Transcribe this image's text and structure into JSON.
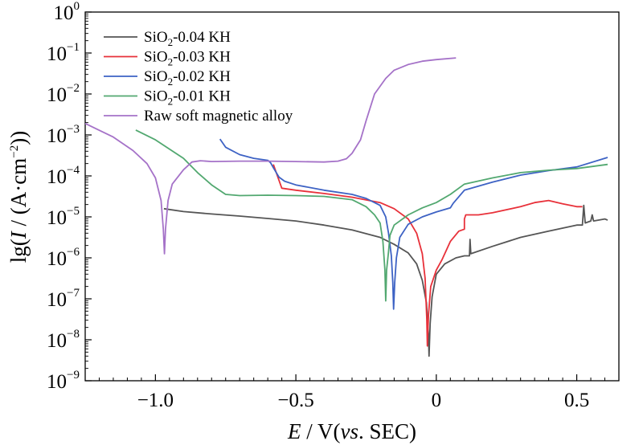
{
  "chart_data": {
    "type": "line",
    "title": "",
    "x_axis": {
      "label_italic": "E",
      "label_rest": " / V(",
      "label_italic2": "vs",
      "label_rest2": ". SEC)",
      "range": [
        -1.25,
        0.65
      ],
      "ticks": [
        -1.0,
        -0.5,
        0,
        0.5
      ],
      "tick_labels": [
        "−1.0",
        "−0.5",
        "0",
        "0.5"
      ]
    },
    "y_axis": {
      "label_pre": "lg(",
      "label_italic": "I",
      "label_mid": " / (A·cm",
      "label_sup": "−2",
      "label_post": "))",
      "scale": "log",
      "range_exponent": [
        -9,
        0
      ],
      "tick_exponents": [
        -9,
        -8,
        -7,
        -6,
        -5,
        -4,
        -3,
        -2,
        -1,
        0
      ],
      "tick_base": "10"
    },
    "legend": {
      "position": "top-left",
      "entries": [
        {
          "pre": "SiO",
          "sub": "2",
          "post": "-0.04 KH",
          "color": "#555555"
        },
        {
          "pre": "SiO",
          "sub": "2",
          "post": "-0.03 KH",
          "color": "#e8313a"
        },
        {
          "pre": "SiO",
          "sub": "2",
          "post": "-0.02 KH",
          "color": "#3d62c4"
        },
        {
          "pre": "SiO",
          "sub": "2",
          "post": "-0.01 KH",
          "color": "#52a870"
        },
        {
          "pre": "Raw soft magnetic alloy",
          "sub": "",
          "post": "",
          "color": "#a572c8"
        }
      ]
    },
    "series": [
      {
        "name": "SiO2-0.04 KH",
        "color": "#555555",
        "points": [
          [
            -0.97,
            -4.8
          ],
          [
            -0.9,
            -4.87
          ],
          [
            -0.8,
            -4.93
          ],
          [
            -0.7,
            -4.98
          ],
          [
            -0.6,
            -5.04
          ],
          [
            -0.5,
            -5.1
          ],
          [
            -0.4,
            -5.2
          ],
          [
            -0.3,
            -5.32
          ],
          [
            -0.2,
            -5.5
          ],
          [
            -0.15,
            -5.67
          ],
          [
            -0.1,
            -5.88
          ],
          [
            -0.07,
            -6.15
          ],
          [
            -0.05,
            -6.55
          ],
          [
            -0.035,
            -7.1
          ],
          [
            -0.028,
            -7.9
          ],
          [
            -0.026,
            -8.4
          ],
          [
            -0.022,
            -7.6
          ],
          [
            -0.015,
            -6.95
          ],
          [
            0,
            -6.4
          ],
          [
            0.03,
            -6.15
          ],
          [
            0.07,
            -6.0
          ],
          [
            0.1,
            -5.95
          ],
          [
            0.118,
            -5.95
          ],
          [
            0.12,
            -5.55
          ],
          [
            0.123,
            -5.9
          ],
          [
            0.2,
            -5.72
          ],
          [
            0.3,
            -5.5
          ],
          [
            0.4,
            -5.35
          ],
          [
            0.5,
            -5.2
          ],
          [
            0.52,
            -5.2
          ],
          [
            0.525,
            -4.72
          ],
          [
            0.53,
            -5.15
          ],
          [
            0.55,
            -5.1
          ],
          [
            0.555,
            -4.95
          ],
          [
            0.56,
            -5.1
          ],
          [
            0.6,
            -5.05
          ],
          [
            0.61,
            -5.08
          ]
        ]
      },
      {
        "name": "SiO2-0.03 KH",
        "color": "#e8313a",
        "points": [
          [
            -0.58,
            -3.72
          ],
          [
            -0.55,
            -4.3
          ],
          [
            -0.5,
            -4.35
          ],
          [
            -0.4,
            -4.43
          ],
          [
            -0.3,
            -4.52
          ],
          [
            -0.2,
            -4.65
          ],
          [
            -0.15,
            -4.8
          ],
          [
            -0.1,
            -5.05
          ],
          [
            -0.07,
            -5.4
          ],
          [
            -0.05,
            -5.9
          ],
          [
            -0.04,
            -6.5
          ],
          [
            -0.034,
            -7.5
          ],
          [
            -0.032,
            -8.15
          ],
          [
            -0.028,
            -7.4
          ],
          [
            -0.02,
            -6.7
          ],
          [
            0,
            -6.3
          ],
          [
            0.02,
            -6.05
          ],
          [
            0.05,
            -5.6
          ],
          [
            0.08,
            -5.35
          ],
          [
            0.1,
            -5.3
          ],
          [
            0.1,
            -5.05
          ],
          [
            0.105,
            -4.95
          ],
          [
            0.15,
            -4.95
          ],
          [
            0.2,
            -4.9
          ],
          [
            0.3,
            -4.75
          ],
          [
            0.35,
            -4.65
          ],
          [
            0.4,
            -4.6
          ],
          [
            0.45,
            -4.68
          ],
          [
            0.5,
            -4.75
          ],
          [
            0.52,
            -4.75
          ]
        ]
      },
      {
        "name": "SiO2-0.02 KH",
        "color": "#3d62c4",
        "points": [
          [
            -0.77,
            -3.1
          ],
          [
            -0.75,
            -3.3
          ],
          [
            -0.7,
            -3.48
          ],
          [
            -0.65,
            -3.57
          ],
          [
            -0.6,
            -3.62
          ],
          [
            -0.59,
            -3.68
          ],
          [
            -0.58,
            -3.8
          ],
          [
            -0.56,
            -4.03
          ],
          [
            -0.54,
            -4.13
          ],
          [
            -0.5,
            -4.22
          ],
          [
            -0.4,
            -4.35
          ],
          [
            -0.3,
            -4.45
          ],
          [
            -0.25,
            -4.55
          ],
          [
            -0.2,
            -4.72
          ],
          [
            -0.18,
            -5.0
          ],
          [
            -0.17,
            -5.4
          ],
          [
            -0.16,
            -5.95
          ],
          [
            -0.155,
            -6.6
          ],
          [
            -0.152,
            -7.25
          ],
          [
            -0.148,
            -6.6
          ],
          [
            -0.142,
            -6.0
          ],
          [
            -0.13,
            -5.5
          ],
          [
            -0.1,
            -5.18
          ],
          [
            -0.05,
            -5.0
          ],
          [
            0,
            -4.88
          ],
          [
            0.05,
            -4.78
          ],
          [
            0.06,
            -4.67
          ],
          [
            0.1,
            -4.35
          ],
          [
            0.2,
            -4.15
          ],
          [
            0.3,
            -3.98
          ],
          [
            0.4,
            -3.87
          ],
          [
            0.5,
            -3.78
          ],
          [
            0.61,
            -3.55
          ]
        ]
      },
      {
        "name": "SiO2-0.01 KH",
        "color": "#52a870",
        "points": [
          [
            -1.07,
            -2.88
          ],
          [
            -1.0,
            -3.12
          ],
          [
            -0.9,
            -3.57
          ],
          [
            -0.85,
            -3.92
          ],
          [
            -0.8,
            -4.22
          ],
          [
            -0.75,
            -4.45
          ],
          [
            -0.7,
            -4.48
          ],
          [
            -0.6,
            -4.47
          ],
          [
            -0.5,
            -4.48
          ],
          [
            -0.4,
            -4.5
          ],
          [
            -0.3,
            -4.58
          ],
          [
            -0.25,
            -4.75
          ],
          [
            -0.22,
            -4.95
          ],
          [
            -0.2,
            -5.15
          ],
          [
            -0.19,
            -5.6
          ],
          [
            -0.183,
            -6.3
          ],
          [
            -0.18,
            -7.05
          ],
          [
            -0.177,
            -6.3
          ],
          [
            -0.17,
            -5.85
          ],
          [
            -0.165,
            -5.45
          ],
          [
            -0.15,
            -5.2
          ],
          [
            -0.1,
            -4.95
          ],
          [
            -0.05,
            -4.78
          ],
          [
            0,
            -4.65
          ],
          [
            0.05,
            -4.45
          ],
          [
            0.1,
            -4.2
          ],
          [
            0.2,
            -4.05
          ],
          [
            0.3,
            -3.92
          ],
          [
            0.4,
            -3.86
          ],
          [
            0.5,
            -3.82
          ],
          [
            0.61,
            -3.72
          ]
        ]
      },
      {
        "name": "Raw soft magnetic alloy",
        "color": "#a572c8",
        "points": [
          [
            -1.25,
            -2.72
          ],
          [
            -1.15,
            -3.05
          ],
          [
            -1.08,
            -3.38
          ],
          [
            -1.03,
            -3.7
          ],
          [
            -1.0,
            -4.05
          ],
          [
            -0.98,
            -4.6
          ],
          [
            -0.972,
            -5.3
          ],
          [
            -0.968,
            -5.9
          ],
          [
            -0.964,
            -5.3
          ],
          [
            -0.955,
            -4.6
          ],
          [
            -0.94,
            -4.2
          ],
          [
            -0.9,
            -3.85
          ],
          [
            -0.87,
            -3.66
          ],
          [
            -0.84,
            -3.63
          ],
          [
            -0.8,
            -3.65
          ],
          [
            -0.7,
            -3.64
          ],
          [
            -0.6,
            -3.64
          ],
          [
            -0.5,
            -3.65
          ],
          [
            -0.4,
            -3.66
          ],
          [
            -0.35,
            -3.64
          ],
          [
            -0.32,
            -3.58
          ],
          [
            -0.3,
            -3.45
          ],
          [
            -0.27,
            -3.12
          ],
          [
            -0.25,
            -2.65
          ],
          [
            -0.22,
            -2.0
          ],
          [
            -0.18,
            -1.62
          ],
          [
            -0.15,
            -1.42
          ],
          [
            -0.1,
            -1.28
          ],
          [
            -0.05,
            -1.2
          ],
          [
            0,
            -1.16
          ],
          [
            0.07,
            -1.12
          ]
        ]
      }
    ]
  }
}
